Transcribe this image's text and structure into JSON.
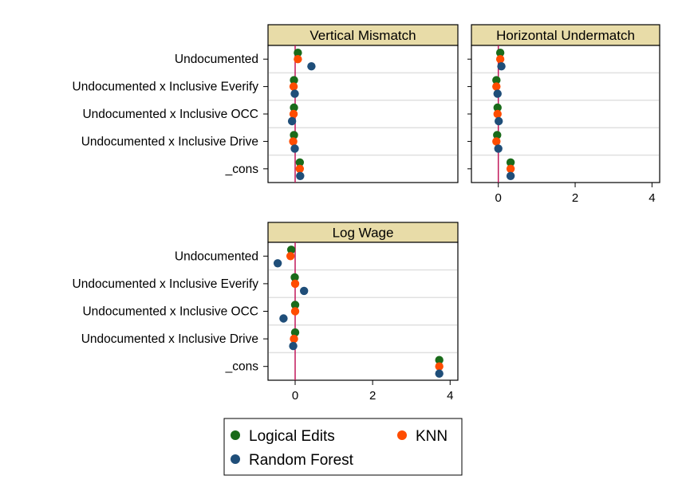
{
  "chart_data": {
    "type": "scatter",
    "row_labels": [
      "Undocumented",
      "Undocumented x Inclusive Everify",
      "Undocumented x Inclusive OCC",
      "Undocumented x Inclusive Drive",
      "_cons"
    ],
    "legend": {
      "placement": "bottom",
      "items": [
        {
          "key": "logical",
          "label": "Logical Edits"
        },
        {
          "key": "knn",
          "label": "KNN"
        },
        {
          "key": "rf",
          "label": "Random Forest"
        }
      ]
    },
    "colors": {
      "logical": "#1a6b1a",
      "knn": "#ff4c00",
      "rf": "#1f4e79",
      "zero_line": "#c2185b",
      "header_bg": "#e8dca8",
      "gridline": "#e0e0e0"
    },
    "x_ticks": [
      0,
      2,
      4
    ],
    "xlim": [
      -0.7,
      4.2
    ],
    "panels": [
      {
        "title": "Vertical Mismatch",
        "show_row_labels": true,
        "show_x_axis": false,
        "series": {
          "logical": [
            0.07,
            -0.03,
            -0.03,
            -0.03,
            0.12
          ],
          "knn": [
            0.07,
            -0.04,
            -0.04,
            -0.05,
            0.12
          ],
          "rf": [
            0.42,
            -0.01,
            -0.08,
            -0.01,
            0.13
          ]
        }
      },
      {
        "title": "Horizontal Undermatch",
        "show_row_labels": false,
        "show_x_axis": true,
        "series": {
          "logical": [
            0.05,
            -0.05,
            -0.02,
            -0.03,
            0.32
          ],
          "knn": [
            0.05,
            -0.05,
            -0.02,
            -0.05,
            0.32
          ],
          "rf": [
            0.08,
            -0.02,
            0.01,
            0.0,
            0.32
          ]
        }
      },
      {
        "title": "Log Wage",
        "show_row_labels": true,
        "show_x_axis": true,
        "series": {
          "logical": [
            -0.1,
            -0.01,
            0.0,
            0.0,
            3.72
          ],
          "knn": [
            -0.12,
            0.0,
            0.0,
            -0.03,
            3.72
          ],
          "rf": [
            -0.45,
            0.23,
            -0.3,
            -0.05,
            3.72
          ]
        }
      }
    ]
  }
}
